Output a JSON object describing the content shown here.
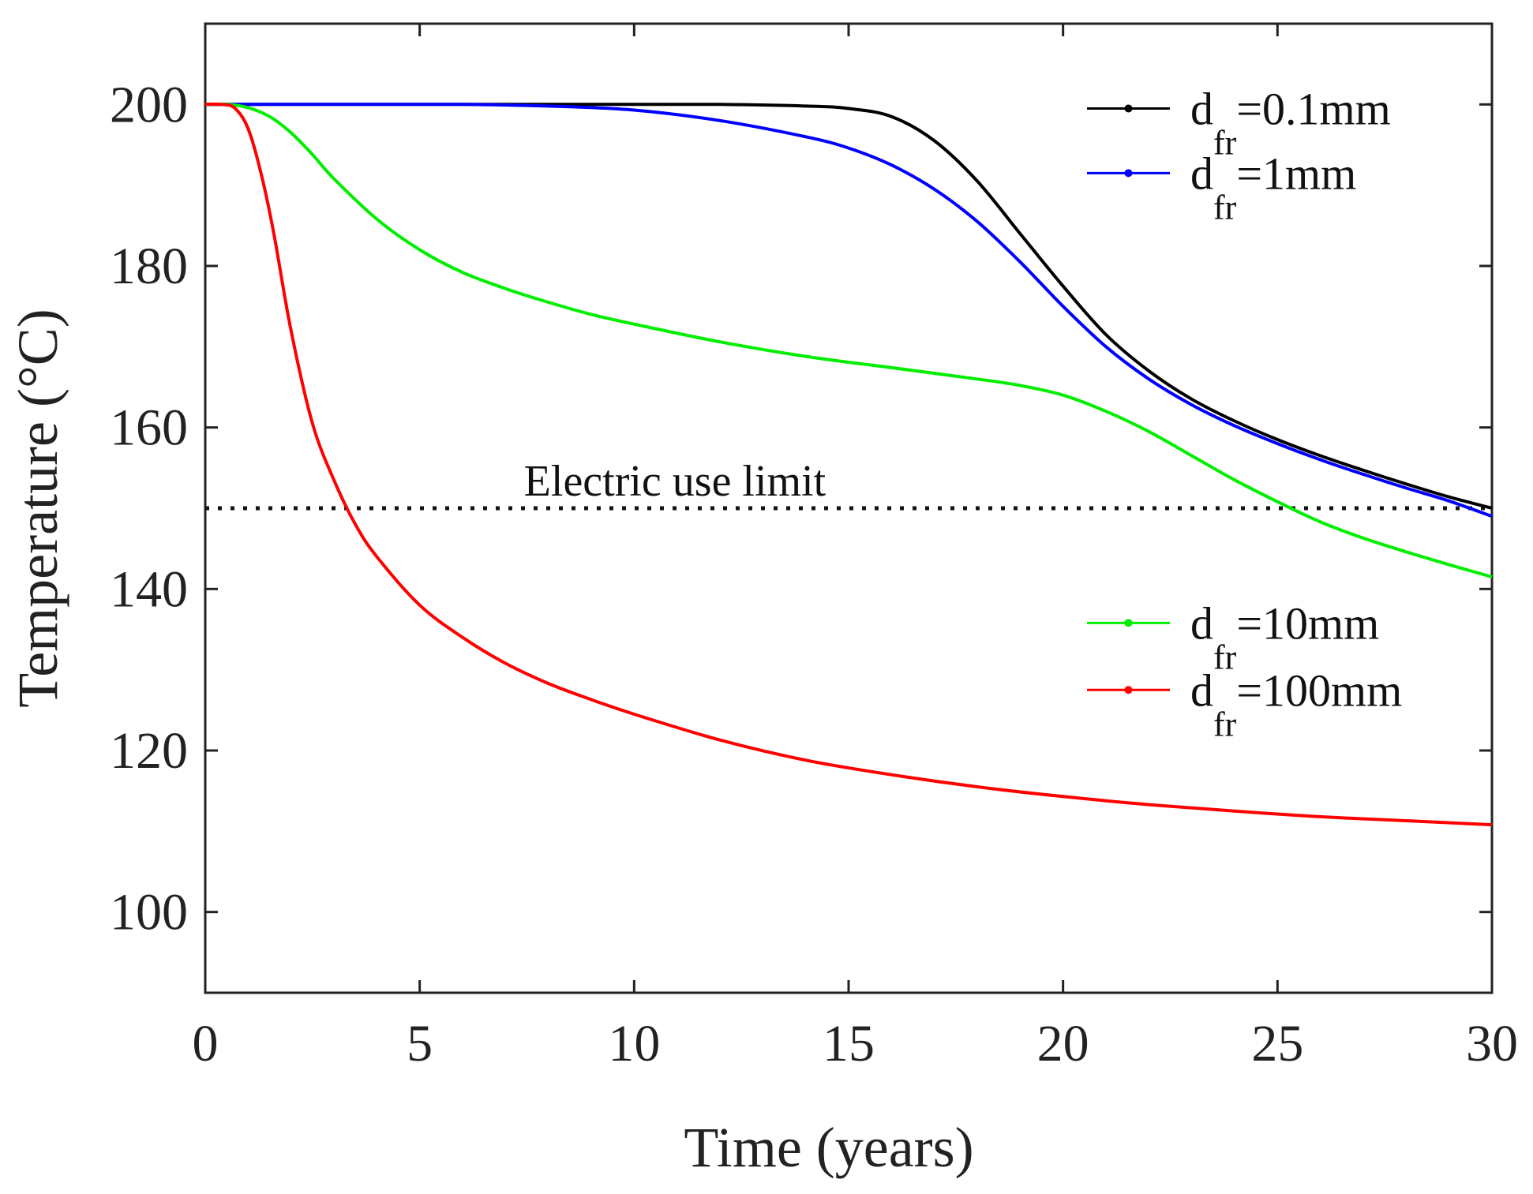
{
  "chart_data": {
    "type": "line",
    "title": "",
    "xlabel": "Time (years)",
    "ylabel": "Temperature (°C)",
    "xlim": [
      0,
      30
    ],
    "ylim": [
      90,
      210
    ],
    "xticks": [
      0,
      5,
      10,
      15,
      20,
      25,
      30
    ],
    "yticks": [
      100,
      120,
      140,
      160,
      180,
      200
    ],
    "grid": false,
    "reference_line": {
      "y": 150,
      "label": "Electric use limit",
      "style": "dotted",
      "color": "#111111"
    },
    "legend": [
      {
        "group": "upper-right",
        "entries": [
          0,
          1
        ]
      },
      {
        "group": "right-middle",
        "entries": [
          2,
          3
        ]
      }
    ],
    "series": [
      {
        "name": "d_fr=0.1mm",
        "label_main": "d",
        "label_sub": "fr",
        "label_rest": "=0.1mm",
        "color": "#000000",
        "x": [
          0,
          0.5,
          1,
          2,
          4,
          6,
          8,
          10,
          12,
          14,
          15,
          16,
          17,
          18,
          19,
          20,
          21,
          22,
          23,
          24,
          25,
          26,
          27,
          28,
          29,
          30
        ],
        "y": [
          200,
          200,
          200,
          200,
          200,
          200,
          200,
          200,
          200,
          199.8,
          199.5,
          198.5,
          195.5,
          190.5,
          184,
          177.5,
          171.5,
          167,
          163.5,
          160.8,
          158.5,
          156.5,
          154.7,
          153,
          151.4,
          150
        ]
      },
      {
        "name": "d_fr=1mm",
        "label_main": "d",
        "label_sub": "fr",
        "label_rest": "=1mm",
        "color": "#0000ff",
        "x": [
          0,
          0.5,
          1,
          2,
          4,
          6,
          8,
          10,
          12,
          14,
          15,
          16,
          17,
          18,
          19,
          20,
          21,
          22,
          23,
          24,
          25,
          26,
          27,
          28,
          29,
          30
        ],
        "y": [
          200,
          200,
          200,
          200,
          200,
          200,
          199.8,
          199.3,
          198,
          196,
          194.6,
          192.5,
          189.5,
          185.5,
          180.5,
          175,
          170,
          166,
          162.8,
          160.2,
          158,
          156,
          154.2,
          152.5,
          150.9,
          149
        ]
      },
      {
        "name": "d_fr=10mm",
        "label_main": "d",
        "label_sub": "fr",
        "label_rest": "=10mm",
        "color": "#00ee00",
        "x": [
          0,
          0.5,
          1,
          1.5,
          2,
          2.5,
          3,
          4,
          5,
          6,
          7,
          8,
          9,
          10,
          12,
          14,
          16,
          18,
          19,
          20,
          21,
          22,
          23,
          24,
          25,
          26,
          27,
          28,
          29,
          30
        ],
        "y": [
          200,
          200,
          199.6,
          198.5,
          196.5,
          193.8,
          190.8,
          185.8,
          182,
          179.2,
          177.2,
          175.5,
          174,
          172.8,
          170.6,
          168.8,
          167.4,
          166,
          165.2,
          164,
          162,
          159.5,
          156.5,
          153.5,
          150.8,
          148.3,
          146.3,
          144.6,
          143,
          141.5
        ]
      },
      {
        "name": "d_fr=100mm",
        "label_main": "d",
        "label_sub": "fr",
        "label_rest": "=100mm",
        "color": "#ff0000",
        "x": [
          0,
          0.4,
          0.7,
          1,
          1.3,
          1.6,
          2,
          2.5,
          3,
          3.5,
          4,
          5,
          6,
          7,
          8,
          9,
          10,
          12,
          14,
          16,
          18,
          20,
          22,
          24,
          26,
          28,
          30
        ],
        "y": [
          200,
          200,
          199.5,
          197,
          191.5,
          184,
          172,
          160.5,
          153.5,
          148,
          144,
          138,
          134,
          130.8,
          128.3,
          126.3,
          124.5,
          121.3,
          118.8,
          117,
          115.5,
          114.3,
          113.3,
          112.5,
          111.8,
          111.3,
          110.8
        ]
      }
    ]
  }
}
